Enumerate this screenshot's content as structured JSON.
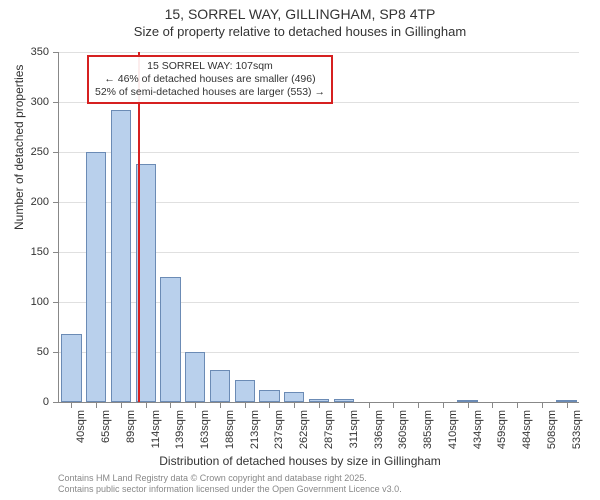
{
  "title": {
    "main": "15, SORREL WAY, GILLINGHAM, SP8 4TP",
    "sub": "Size of property relative to detached houses in Gillingham"
  },
  "chart": {
    "type": "histogram",
    "y_label": "Number of detached properties",
    "x_label": "Distribution of detached houses by size in Gillingham",
    "y_max": 350,
    "y_tick_step": 50,
    "y_ticks": [
      0,
      50,
      100,
      150,
      200,
      250,
      300,
      350
    ],
    "x_categories": [
      "40sqm",
      "65sqm",
      "89sqm",
      "114sqm",
      "139sqm",
      "163sqm",
      "188sqm",
      "213sqm",
      "237sqm",
      "262sqm",
      "287sqm",
      "311sqm",
      "336sqm",
      "360sqm",
      "385sqm",
      "410sqm",
      "434sqm",
      "459sqm",
      "484sqm",
      "508sqm",
      "533sqm"
    ],
    "values": [
      68,
      250,
      292,
      238,
      125,
      50,
      32,
      22,
      12,
      10,
      3,
      3,
      0,
      0,
      0,
      0,
      2,
      0,
      0,
      0,
      2
    ],
    "bar_fill": "#b9d0ec",
    "bar_stroke": "#6b8bb5",
    "grid_color": "#e0e0e0",
    "background_color": "#ffffff",
    "marker": {
      "color": "#d62020",
      "x_value_sqm": 107,
      "line1": "15 SORREL WAY: 107sqm",
      "line2": "← 46% of detached houses are smaller (496)",
      "line3": "52% of semi-detached houses are larger (553) →"
    }
  },
  "footer": {
    "line1": "Contains HM Land Registry data © Crown copyright and database right 2025.",
    "line2": "Contains public sector information licensed under the Open Government Licence v3.0."
  }
}
